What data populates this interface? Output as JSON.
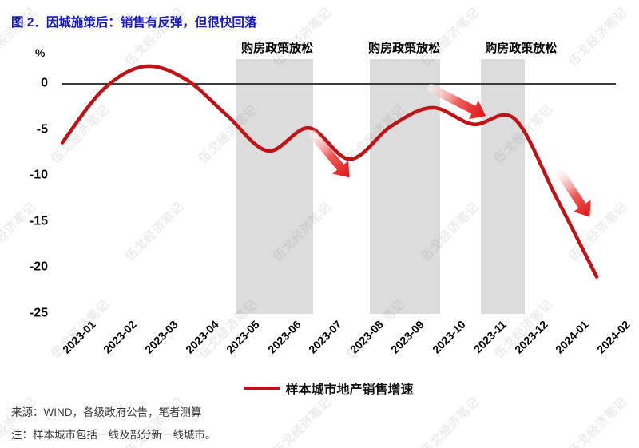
{
  "title": "图 2．因城施策后：销售有反弹，但很快回落",
  "watermark_text": "伍戈经济笔记",
  "legend": {
    "series_label": "样本城市地产销售增速",
    "line_color": "#bf1318"
  },
  "footnotes": {
    "source": "来源：WIND，各级政府公告，笔者测算",
    "note": "注：样本城市包括一线及部分新一线城市。"
  },
  "chart_data": {
    "type": "line",
    "title": "图 2．因城施策后：销售有反弹，但很快回落",
    "unit_label": "%",
    "categories": [
      "2023-01",
      "2023-02",
      "2023-03",
      "2023-04",
      "2023-05",
      "2023-06",
      "2023-07",
      "2023-08",
      "2023-09",
      "2023-10",
      "2023-11",
      "2023-12",
      "2024-01",
      "2024-02"
    ],
    "series": [
      {
        "name": "样本城市地产销售增速",
        "color": "#bf1318",
        "values": [
          -6.4,
          -0.6,
          1.9,
          0.5,
          -3.4,
          -7.3,
          -4.8,
          -8.2,
          -4.6,
          -2.6,
          -4.4,
          -3.8,
          -12.2,
          -21.0
        ]
      }
    ],
    "yticks": [
      0,
      -5,
      -10,
      -15,
      -20,
      -25
    ],
    "ylim": [
      -25,
      3
    ],
    "grid": false,
    "legend_position": "bottom",
    "zero_line": true,
    "policy_bands": [
      {
        "label": "购房政策放松",
        "from": "2023-05",
        "to": "2023-07",
        "from_index": 4.24,
        "to_index": 6.1,
        "label_index": 5.23
      },
      {
        "label": "购房政策放松",
        "from": "2023-08",
        "to": "2023-10",
        "from_index": 7.48,
        "to_index": 9.19,
        "label_index": 8.32
      },
      {
        "label": "购房政策放松",
        "from": "2023-11",
        "to": "2023-12",
        "from_index": 10.18,
        "to_index": 11.25,
        "label_index": 11.16
      }
    ],
    "arrow_annotations": [
      {
        "from_index": 6.1,
        "from_value": -5.5,
        "to_index": 6.98,
        "to_value": -10.2
      },
      {
        "from_index": 8.98,
        "from_value": -0.5,
        "to_index": 10.3,
        "to_value": -3.5
      },
      {
        "from_index": 12.13,
        "from_value": -9.8,
        "to_index": 12.83,
        "to_value": -14.5
      }
    ],
    "arrow_colors": {
      "tail": "#fdecec",
      "mid": "#ee5b5b",
      "head": "#df1212"
    },
    "band_color": "#dcdcdc",
    "zero_line_color": "#3c3c3c"
  }
}
